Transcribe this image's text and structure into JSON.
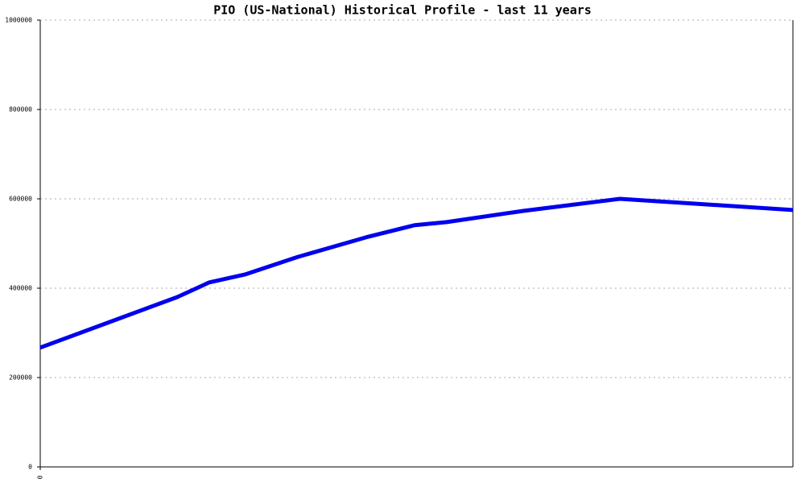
{
  "chart_data": {
    "type": "line",
    "title": "PIO (US-National) Historical Profile - last 11 years",
    "x": [
      0,
      170,
      210,
      255,
      320,
      405,
      465,
      505,
      600,
      720,
      935
    ],
    "values": [
      267000,
      380000,
      413000,
      431000,
      470000,
      514000,
      541000,
      548000,
      573000,
      600000,
      575000
    ],
    "color": "#0000ee",
    "xlim": [
      0,
      935
    ],
    "xticks": [
      0
    ],
    "ylim": [
      0,
      1000000
    ],
    "yticks": [
      0,
      200000,
      400000,
      600000,
      800000,
      1000000
    ],
    "grid": true
  }
}
